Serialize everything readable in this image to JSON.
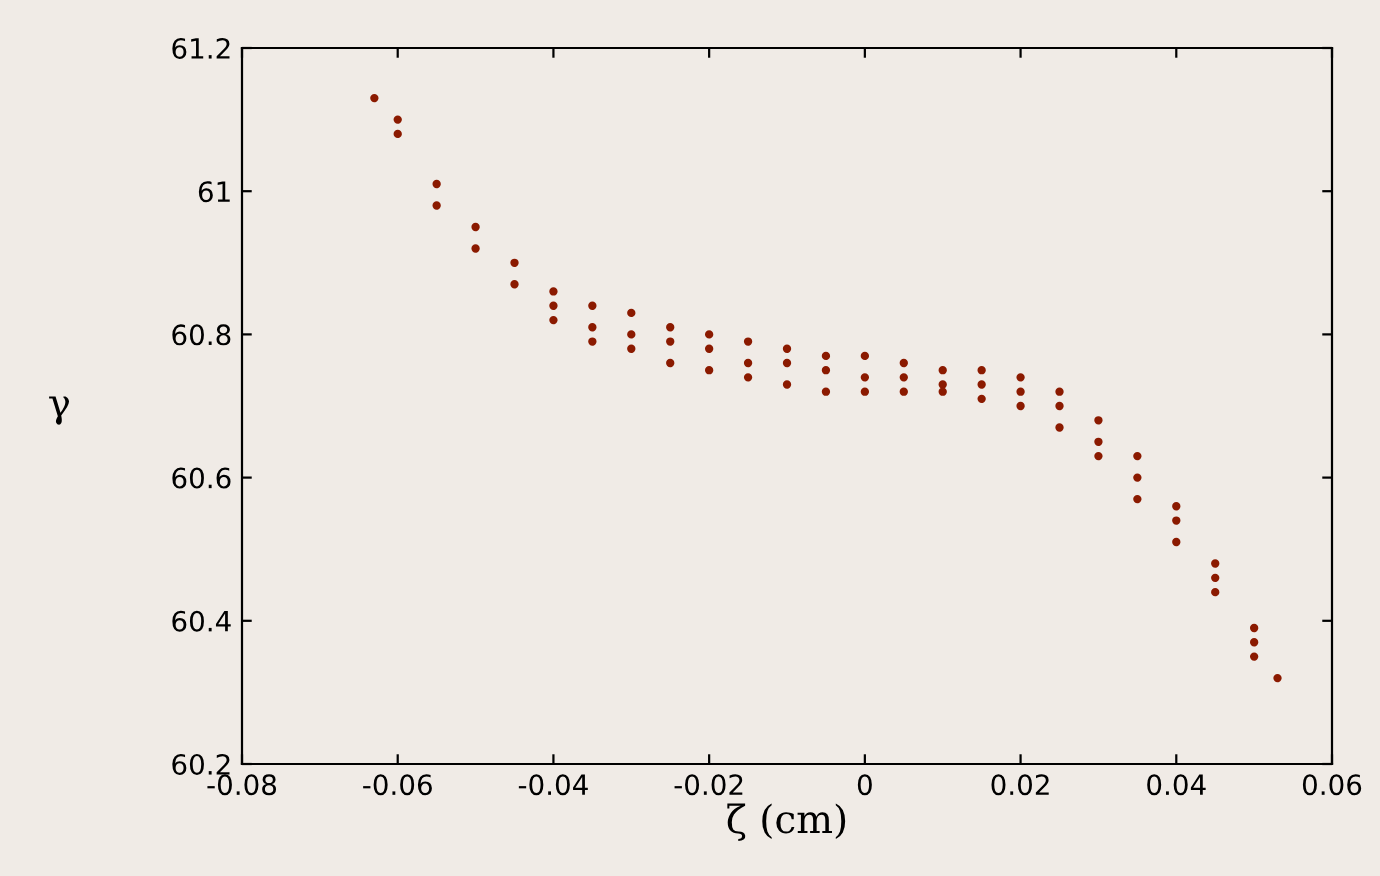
{
  "chart_data": {
    "type": "scatter",
    "xlabel": "ζ (cm)",
    "ylabel": "γ",
    "marker": "circle",
    "grid": false,
    "xlim": [
      -0.08,
      0.06
    ],
    "ylim": [
      60.2,
      61.2
    ],
    "xticks": [
      -0.08,
      -0.06,
      -0.04,
      -0.02,
      0,
      0.02,
      0.04,
      0.06
    ],
    "yticks": [
      60.2,
      60.4,
      60.6,
      60.8,
      61,
      61.2
    ],
    "series": [
      {
        "color": "#8b1a00",
        "x": [
          -0.063,
          -0.06,
          -0.06,
          -0.055,
          -0.055,
          -0.05,
          -0.05,
          -0.045,
          -0.045,
          -0.04,
          -0.04,
          -0.04,
          -0.035,
          -0.035,
          -0.035,
          -0.03,
          -0.03,
          -0.03,
          -0.025,
          -0.025,
          -0.025,
          -0.02,
          -0.02,
          -0.02,
          -0.015,
          -0.015,
          -0.015,
          -0.01,
          -0.01,
          -0.01,
          -0.005,
          -0.005,
          -0.005,
          0,
          0,
          0,
          0.005,
          0.005,
          0.005,
          0.01,
          0.01,
          0.01,
          0.015,
          0.015,
          0.015,
          0.02,
          0.02,
          0.02,
          0.025,
          0.025,
          0.025,
          0.03,
          0.03,
          0.03,
          0.035,
          0.035,
          0.035,
          0.04,
          0.04,
          0.04,
          0.045,
          0.045,
          0.045,
          0.05,
          0.05,
          0.05,
          0.053
        ],
        "values": [
          61.13,
          61.1,
          61.08,
          61.01,
          60.98,
          60.95,
          60.92,
          60.9,
          60.87,
          60.86,
          60.84,
          60.82,
          60.84,
          60.81,
          60.79,
          60.83,
          60.8,
          60.78,
          60.81,
          60.79,
          60.76,
          60.8,
          60.78,
          60.75,
          60.79,
          60.76,
          60.74,
          60.78,
          60.76,
          60.73,
          60.77,
          60.75,
          60.72,
          60.77,
          60.74,
          60.72,
          60.76,
          60.74,
          60.72,
          60.75,
          60.73,
          60.72,
          60.75,
          60.73,
          60.71,
          60.74,
          60.72,
          60.7,
          60.72,
          60.7,
          60.67,
          60.68,
          60.65,
          60.63,
          60.63,
          60.6,
          60.57,
          60.56,
          60.54,
          60.51,
          60.48,
          60.46,
          60.44,
          60.39,
          60.37,
          60.35,
          60.32
        ]
      }
    ]
  }
}
